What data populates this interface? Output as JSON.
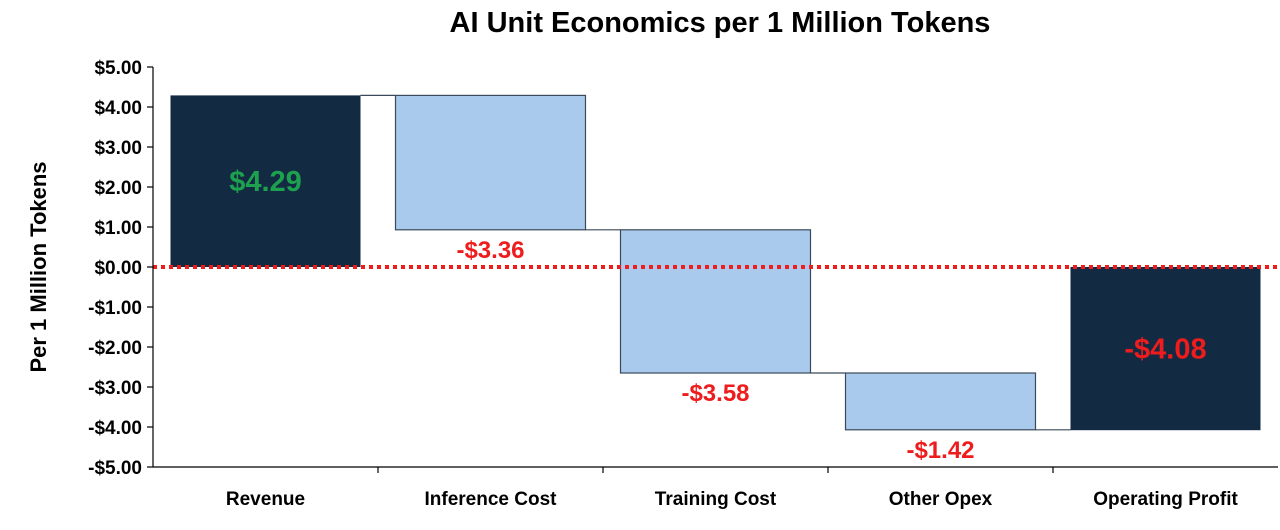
{
  "chart_data": {
    "type": "bar",
    "subtype": "waterfall",
    "title": "AI Unit Economics per 1 Million Tokens",
    "xlabel": "",
    "ylabel": "Per 1 Million Tokens",
    "ylim": [
      -5,
      5
    ],
    "yticks": [
      {
        "value": 5,
        "label": "$5.00"
      },
      {
        "value": 4,
        "label": "$4.00"
      },
      {
        "value": 3,
        "label": "$3.00"
      },
      {
        "value": 2,
        "label": "$2.00"
      },
      {
        "value": 1,
        "label": "$1.00"
      },
      {
        "value": 0,
        "label": "$0.00"
      },
      {
        "value": -1,
        "label": "-$1.00"
      },
      {
        "value": -2,
        "label": "-$2.00"
      },
      {
        "value": -3,
        "label": "-$3.00"
      },
      {
        "value": -4,
        "label": "-$4.00"
      },
      {
        "value": -5,
        "label": "-$5.00"
      }
    ],
    "categories": [
      "Revenue",
      "Inference Cost",
      "Training Cost",
      "Other Opex",
      "Operating Profit"
    ],
    "bars": [
      {
        "category": "Revenue",
        "kind": "total",
        "start": 0,
        "end": 4.29,
        "label": "$4.29",
        "label_position": "inside"
      },
      {
        "category": "Inference Cost",
        "kind": "delta",
        "start": 4.29,
        "end": 0.93,
        "label": "-$3.36",
        "label_position": "below"
      },
      {
        "category": "Training Cost",
        "kind": "delta",
        "start": 0.93,
        "end": -2.65,
        "label": "-$3.58",
        "label_position": "below"
      },
      {
        "category": "Other Opex",
        "kind": "delta",
        "start": -2.65,
        "end": -4.07,
        "label": "-$1.42",
        "label_position": "below"
      },
      {
        "category": "Operating Profit",
        "kind": "total",
        "start": 0,
        "end": -4.08,
        "label": "-$4.08",
        "label_position": "inside"
      }
    ],
    "reference_line": {
      "value": 0,
      "style": "dotted"
    },
    "colors": {
      "total_bar": "#132a43",
      "delta_bar": "#a9caec",
      "delta_bar_stroke": "#3b4a5a",
      "connector": "#3b4a5a",
      "zero_line": "#ee1c1c",
      "positive_label": "#1ea14e",
      "negative_label": "#ee1c1c",
      "axis": "#000000"
    },
    "grid": false,
    "legend": "none"
  }
}
